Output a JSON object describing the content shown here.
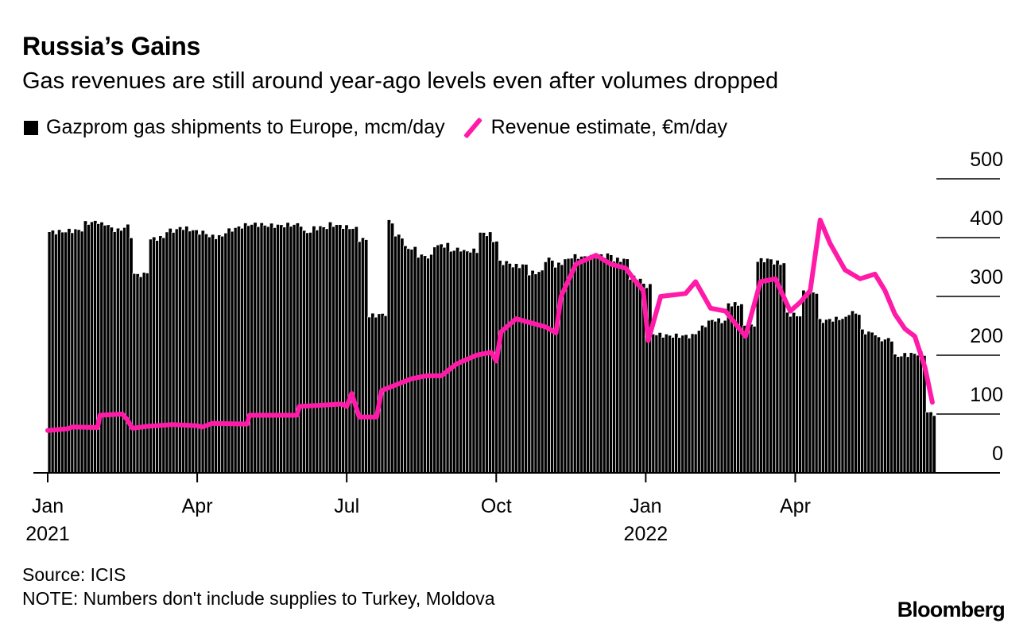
{
  "title": "Russia’s Gains",
  "subtitle": "Gas revenues are still around year-ago levels even after volumes dropped",
  "legend": {
    "bars": "Gazprom gas shipments to Europe, mcm/day",
    "line": "Revenue estimate, €m/day"
  },
  "source": "Source: ICIS",
  "note": "NOTE: Numbers don't include supplies to Turkey, Moldova",
  "brand": "Bloomberg",
  "colors": {
    "bars": "#000000",
    "line": "#ff1aa8",
    "grid": "#000000"
  },
  "chart_data": {
    "type": "bar+line",
    "x_ticks": [
      {
        "label": "Jan",
        "year": "2021",
        "t": 0
      },
      {
        "label": "Apr",
        "year": "",
        "t": 3
      },
      {
        "label": "Jul",
        "year": "",
        "t": 6
      },
      {
        "label": "Oct",
        "year": "",
        "t": 9
      },
      {
        "label": "Jan",
        "year": "2022",
        "t": 12
      },
      {
        "label": "Apr",
        "year": "",
        "t": 15
      }
    ],
    "x_range_months": [
      0,
      17.8
    ],
    "ylim": [
      0,
      500
    ],
    "y_ticks": [
      0,
      100,
      200,
      300,
      400,
      500
    ],
    "grid": "horizontal",
    "y_axis_position": "right",
    "series": [
      {
        "name": "Gazprom gas shipments to Europe, mcm/day",
        "kind": "bar",
        "points": [
          [
            0,
            410
          ],
          [
            0.4,
            415
          ],
          [
            0.7,
            425
          ],
          [
            1.0,
            420
          ],
          [
            1.2,
            412
          ],
          [
            1.5,
            420
          ],
          [
            1.6,
            405
          ],
          [
            1.65,
            340
          ],
          [
            1.9,
            345
          ],
          [
            2.0,
            400
          ],
          [
            2.3,
            410
          ],
          [
            2.6,
            415
          ],
          [
            3.0,
            410
          ],
          [
            3.2,
            405
          ],
          [
            3.5,
            412
          ],
          [
            4.0,
            420
          ],
          [
            4.4,
            420
          ],
          [
            4.8,
            425
          ],
          [
            5.1,
            410
          ],
          [
            5.3,
            415
          ],
          [
            5.6,
            420
          ],
          [
            6.0,
            418
          ],
          [
            6.2,
            400
          ],
          [
            6.4,
            270
          ],
          [
            6.7,
            270
          ],
          [
            6.8,
            425
          ],
          [
            6.9,
            400
          ],
          [
            7.1,
            380
          ],
          [
            7.4,
            370
          ],
          [
            7.7,
            390
          ],
          [
            8.0,
            380
          ],
          [
            8.3,
            375
          ],
          [
            8.6,
            405
          ],
          [
            8.9,
            395
          ],
          [
            9.0,
            360
          ],
          [
            9.3,
            355
          ],
          [
            9.6,
            340
          ],
          [
            9.9,
            360
          ],
          [
            10.1,
            345
          ],
          [
            10.5,
            370
          ],
          [
            11.0,
            370
          ],
          [
            11.3,
            360
          ],
          [
            11.6,
            330
          ],
          [
            11.9,
            320
          ],
          [
            12.1,
            240
          ],
          [
            12.5,
            235
          ],
          [
            12.9,
            230
          ],
          [
            13.3,
            260
          ],
          [
            13.6,
            290
          ],
          [
            13.9,
            250
          ],
          [
            14.2,
            360
          ],
          [
            14.5,
            355
          ],
          [
            14.8,
            270
          ],
          [
            15.1,
            310
          ],
          [
            15.4,
            260
          ],
          [
            15.7,
            260
          ],
          [
            16.0,
            270
          ],
          [
            16.3,
            240
          ],
          [
            16.6,
            230
          ],
          [
            16.9,
            200
          ],
          [
            17.3,
            200
          ],
          [
            17.6,
            100
          ]
        ]
      },
      {
        "name": "Revenue estimate, €m/day",
        "kind": "line",
        "points": [
          [
            0,
            72
          ],
          [
            0.4,
            75
          ],
          [
            0.5,
            78
          ],
          [
            1.0,
            77
          ],
          [
            1.05,
            98
          ],
          [
            1.5,
            100
          ],
          [
            1.6,
            90
          ],
          [
            1.7,
            76
          ],
          [
            2.0,
            79
          ],
          [
            2.5,
            82
          ],
          [
            3.0,
            80
          ],
          [
            3.1,
            78
          ],
          [
            3.3,
            84
          ],
          [
            4.0,
            83
          ],
          [
            4.05,
            98
          ],
          [
            5.0,
            98
          ],
          [
            5.05,
            113
          ],
          [
            5.5,
            115
          ],
          [
            5.9,
            117
          ],
          [
            6.0,
            113
          ],
          [
            6.1,
            135
          ],
          [
            6.25,
            95
          ],
          [
            6.6,
            95
          ],
          [
            6.7,
            140
          ],
          [
            7.0,
            150
          ],
          [
            7.3,
            160
          ],
          [
            7.6,
            165
          ],
          [
            7.9,
            165
          ],
          [
            8.2,
            185
          ],
          [
            8.6,
            200
          ],
          [
            8.9,
            205
          ],
          [
            9.0,
            190
          ],
          [
            9.1,
            240
          ],
          [
            9.4,
            262
          ],
          [
            9.7,
            255
          ],
          [
            10.0,
            248
          ],
          [
            10.2,
            238
          ],
          [
            10.3,
            300
          ],
          [
            10.6,
            355
          ],
          [
            11.0,
            370
          ],
          [
            11.3,
            355
          ],
          [
            11.6,
            348
          ],
          [
            11.8,
            325
          ],
          [
            11.95,
            310
          ],
          [
            12.05,
            225
          ],
          [
            12.3,
            300
          ],
          [
            12.8,
            305
          ],
          [
            13.0,
            325
          ],
          [
            13.3,
            280
          ],
          [
            13.6,
            275
          ],
          [
            14.0,
            232
          ],
          [
            14.3,
            325
          ],
          [
            14.6,
            330
          ],
          [
            14.9,
            275
          ],
          [
            15.1,
            290
          ],
          [
            15.3,
            310
          ],
          [
            15.5,
            430
          ],
          [
            15.7,
            390
          ],
          [
            16.0,
            345
          ],
          [
            16.3,
            330
          ],
          [
            16.6,
            338
          ],
          [
            16.8,
            310
          ],
          [
            17.0,
            270
          ],
          [
            17.2,
            245
          ],
          [
            17.4,
            232
          ],
          [
            17.6,
            180
          ],
          [
            17.75,
            120
          ]
        ]
      }
    ]
  }
}
